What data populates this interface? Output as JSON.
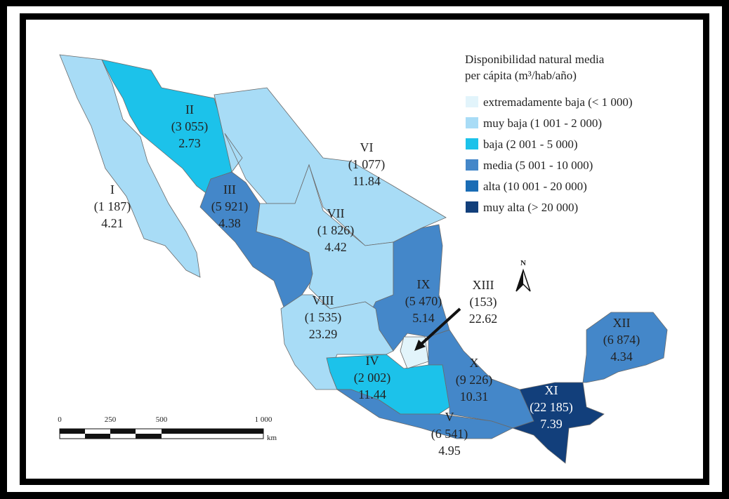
{
  "legend": {
    "title": [
      "Disponibilidad natural media",
      "per cápita (m³/hab/año)"
    ],
    "entries": [
      {
        "label": "extremadamente baja (< 1 000)",
        "color": "#e2f4fb"
      },
      {
        "label": "muy baja (1 001 - 2 000)",
        "color": "#a8dcf6"
      },
      {
        "label": "baja (2 001 - 5 000)",
        "color": "#1cc2ea"
      },
      {
        "label": "media (5 001 - 10 000)",
        "color": "#4487c9"
      },
      {
        "label": "alta (10 001 - 20 000)",
        "color": "#1a6cb5"
      },
      {
        "label": "muy alta (> 20 000)",
        "color": "#123f7b"
      }
    ]
  },
  "regions": [
    {
      "numeral": "I",
      "availability": "(1 187)",
      "value": "4.21",
      "color": "#a8dcf6"
    },
    {
      "numeral": "II",
      "availability": "(3 055)",
      "value": "2.73",
      "color": "#1cc2ea"
    },
    {
      "numeral": "III",
      "availability": "(5 921)",
      "value": "4.38",
      "color": "#4487c9"
    },
    {
      "numeral": "IV",
      "availability": "(2 002)",
      "value": "11.44",
      "color": "#1cc2ea"
    },
    {
      "numeral": "V",
      "availability": "(6 541)",
      "value": "4.95",
      "color": "#4487c9"
    },
    {
      "numeral": "VI",
      "availability": "(1 077)",
      "value": "11.84",
      "color": "#a8dcf6"
    },
    {
      "numeral": "VII",
      "availability": "(1 826)",
      "value": "4.42",
      "color": "#a8dcf6"
    },
    {
      "numeral": "VIII",
      "availability": "(1 535)",
      "value": "23.29",
      "color": "#a8dcf6"
    },
    {
      "numeral": "IX",
      "availability": "(5 470)",
      "value": "5.14",
      "color": "#4487c9"
    },
    {
      "numeral": "X",
      "availability": "(9 226)",
      "value": "10.31",
      "color": "#4487c9"
    },
    {
      "numeral": "XI",
      "availability": "(22 185)",
      "value": "7.39",
      "color": "#123f7b"
    },
    {
      "numeral": "XII",
      "availability": "(6 874)",
      "value": "4.34",
      "color": "#4487c9"
    },
    {
      "numeral": "XIII",
      "availability": "(153)",
      "value": "22.62",
      "color": "#e2f4fb"
    }
  ],
  "scale": {
    "ticks": [
      "0",
      "250",
      "500",
      "1 000"
    ],
    "unit": "km"
  },
  "north": "N"
}
